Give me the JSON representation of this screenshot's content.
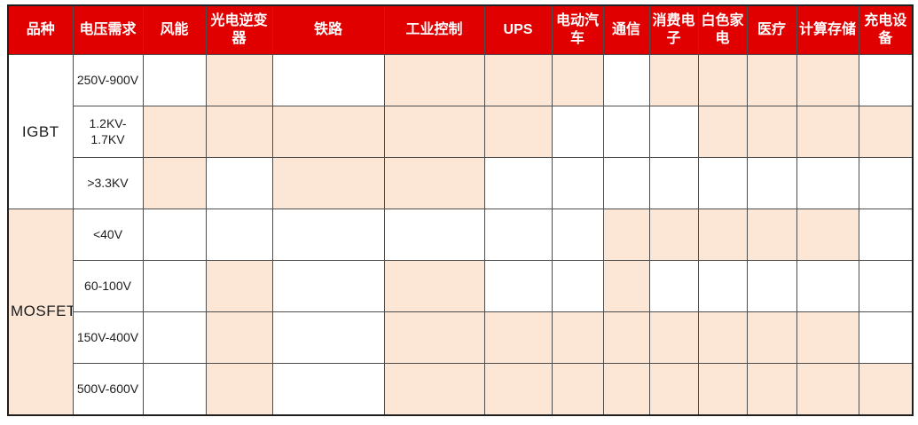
{
  "colors": {
    "header_bg": "#e00000",
    "header_text": "#ffffff",
    "highlight_cell": "#fce6d5",
    "plain_cell": "#ffffff",
    "grid_line": "#4d4d4d",
    "outer_border": "#1f1f1f"
  },
  "chart_data": {
    "type": "table",
    "title": "",
    "columns": [
      "品种",
      "电压需求",
      "风能",
      "光电逆变器",
      "铁路",
      "工业控制",
      "UPS",
      "电动汽车",
      "通信",
      "消费电子",
      "白色家电",
      "医疗",
      "计算存储",
      "充电设备"
    ],
    "application_columns": [
      "风能",
      "光电逆变器",
      "铁路",
      "工业控制",
      "UPS",
      "电动汽车",
      "通信",
      "消费电子",
      "白色家电",
      "医疗",
      "计算存储",
      "充电设备"
    ],
    "groups": [
      {
        "variety": "IGBT",
        "variety_cell_highlighted": false,
        "rows": [
          {
            "voltage": "250V-900V",
            "cells": [
              0,
              1,
              0,
              1,
              1,
              1,
              0,
              1,
              1,
              1,
              1,
              0
            ]
          },
          {
            "voltage": "1.2KV-1.7KV",
            "cells": [
              1,
              1,
              1,
              1,
              1,
              0,
              0,
              0,
              1,
              1,
              1,
              1
            ]
          },
          {
            "voltage": ">3.3KV",
            "cells": [
              1,
              0,
              1,
              1,
              0,
              0,
              0,
              0,
              0,
              0,
              0,
              0
            ]
          }
        ]
      },
      {
        "variety": "MOSFET",
        "variety_cell_highlighted": true,
        "rows": [
          {
            "voltage": "<40V",
            "cells": [
              0,
              0,
              0,
              0,
              0,
              0,
              1,
              1,
              1,
              1,
              1,
              0
            ]
          },
          {
            "voltage": "60-100V",
            "cells": [
              0,
              1,
              0,
              1,
              0,
              0,
              1,
              0,
              0,
              0,
              0,
              0
            ]
          },
          {
            "voltage": "150V-400V",
            "cells": [
              0,
              1,
              0,
              1,
              1,
              1,
              1,
              1,
              1,
              1,
              1,
              0
            ]
          },
          {
            "voltage": "500V-600V",
            "cells": [
              0,
              1,
              0,
              1,
              1,
              1,
              1,
              1,
              1,
              1,
              1,
              1
            ]
          }
        ]
      }
    ],
    "legend": "1 = peach highlighted cell: the voltage class is used in that application; 0 = white cell"
  }
}
